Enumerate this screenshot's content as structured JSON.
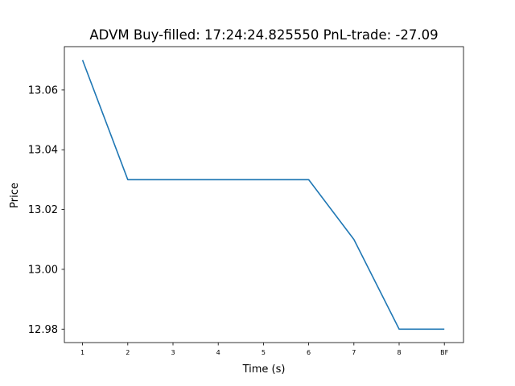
{
  "chart_data": {
    "type": "line",
    "title": "ADVM  Buy-filled:  17:24:24.825550  PnL-trade:  -27.09",
    "xlabel": "Time (s)",
    "ylabel": "Price",
    "categories": [
      "1",
      "2",
      "3",
      "4",
      "5",
      "6",
      "7",
      "8",
      "BF"
    ],
    "series": [
      {
        "values": [
          13.07,
          13.03,
          13.03,
          13.03,
          13.03,
          13.03,
          13.01,
          12.98,
          12.98
        ],
        "color": "#1f77b4"
      }
    ],
    "yticks": [
      "12.98",
      "13.00",
      "13.02",
      "13.04",
      "13.06"
    ],
    "ylim": [
      12.9755,
      13.0745
    ],
    "grid": false,
    "legend": "none"
  }
}
